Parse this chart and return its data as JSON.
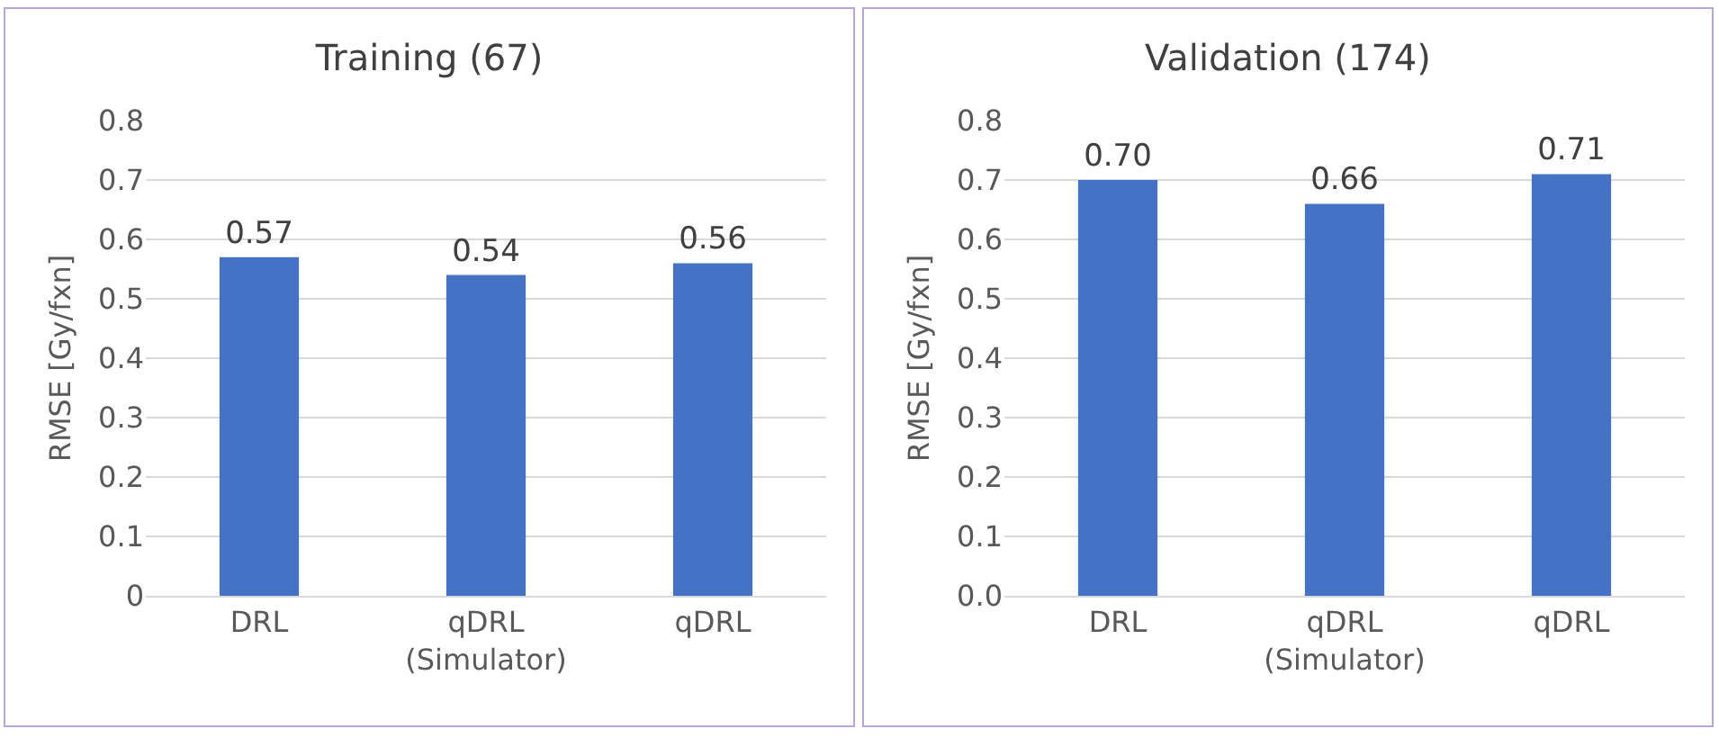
{
  "chart_data": [
    {
      "type": "bar",
      "title": "Training (67)",
      "ylabel": "RMSE [Gy/fxn]",
      "categories": [
        "DRL",
        "qDRL\n(Simulator)",
        "qDRL"
      ],
      "values": [
        0.57,
        0.54,
        0.56
      ],
      "value_labels": [
        "0.57",
        "0.54",
        "0.56"
      ],
      "color": "#4472c4",
      "ylim": [
        0,
        0.8
      ],
      "yticks": [
        0,
        0.1,
        0.2,
        0.3,
        0.4,
        0.5,
        0.6,
        0.7,
        0.8
      ],
      "grid": "y"
    },
    {
      "type": "bar",
      "title": "Validation (174)",
      "ylabel": "RMSE [Gy/fxn]",
      "categories": [
        "DRL",
        "qDRL\n(Simulator)",
        "qDRL"
      ],
      "values": [
        0.7,
        0.66,
        0.71
      ],
      "value_labels": [
        "0.70",
        "0.66",
        "0.71"
      ],
      "color": "#4472c4",
      "ylim": [
        0,
        0.8
      ],
      "yticks": [
        {
          "value": 0,
          "label": "0.0"
        },
        0.1,
        0.2,
        0.3,
        0.4,
        0.5,
        0.6,
        0.7,
        0.8
      ],
      "grid": "y"
    }
  ]
}
